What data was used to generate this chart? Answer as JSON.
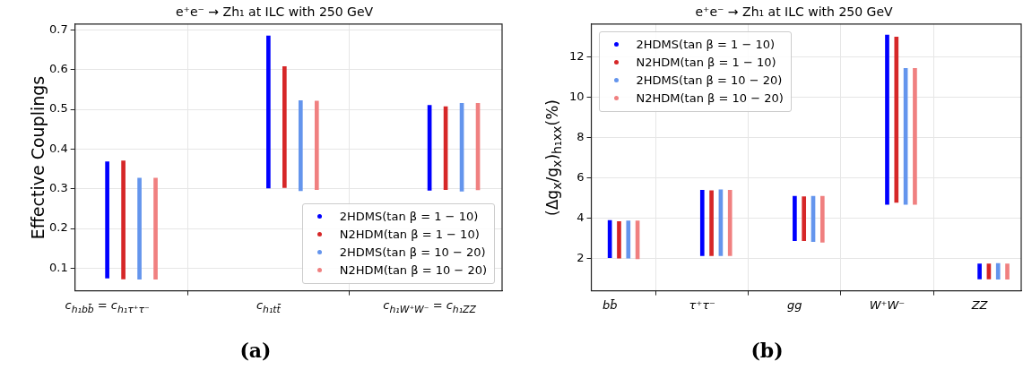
{
  "chart_data": [
    {
      "type": "bar",
      "title": "e⁺e⁻ → Zh₁ at ILC with 250 GeV",
      "ylabel": "Effective Couplings",
      "categories": [
        "c$_{h₁bb̄}$ = c$_{h₁τ⁺τ⁻}$",
        "c$_{h₁tt̄}$",
        "c$_{h₁W⁺W⁻}$ = c$_{h₁ZZ}$"
      ],
      "series": [
        {
          "name": "2HDMS(tan β = 1 − 10)",
          "color": "#0000ff",
          "base": [
            0.075,
            0.302,
            0.296
          ],
          "values": [
            0.293,
            0.383,
            0.214
          ]
        },
        {
          "name": "N2HDM(tan β = 1 − 10)",
          "color": "#d62728",
          "base": [
            0.073,
            0.303,
            0.298
          ],
          "values": [
            0.297,
            0.305,
            0.209
          ]
        },
        {
          "name": "2HDMS(tan β = 10 − 20)",
          "color": "#6495ed",
          "base": [
            0.072,
            0.295,
            0.294
          ],
          "values": [
            0.255,
            0.227,
            0.221
          ]
        },
        {
          "name": "N2HDM(tan β = 10 − 20)",
          "color": "#f08080",
          "base": [
            0.072,
            0.298,
            0.297
          ],
          "values": [
            0.255,
            0.223,
            0.218
          ]
        }
      ],
      "ylim": [
        0.043,
        0.715
      ],
      "yticks": [
        0.1,
        0.2,
        0.3,
        0.4,
        0.5,
        0.6,
        0.7
      ],
      "grid": true,
      "legend": "bottom right",
      "marker": "circle",
      "annotations": [
        "(a)"
      ]
    },
    {
      "type": "bar",
      "title": "e⁺e⁻ → Zh₁ at ILC with 250 GeV",
      "ylabel": "(Δg$_{x}$/g$_{x}$)$_{h₁xx}$(%)",
      "categories": [
        "bb̄",
        "τ⁺τ⁻",
        "gg",
        "W⁺W⁻",
        "ZZ"
      ],
      "series": [
        {
          "name": "2HDMS(tan β = 1 − 10)",
          "color": "#0000ff",
          "base": [
            2.05,
            2.15,
            2.9,
            4.7,
            1.0
          ],
          "values": [
            1.85,
            3.25,
            2.2,
            8.4,
            0.75
          ]
        },
        {
          "name": "N2HDM(tan β = 1 − 10)",
          "color": "#d62728",
          "base": [
            2.03,
            2.15,
            2.9,
            4.8,
            1.0
          ],
          "values": [
            1.82,
            3.23,
            2.18,
            8.2,
            0.75
          ]
        },
        {
          "name": "2HDMS(tan β = 10 − 20)",
          "color": "#6495ed",
          "base": [
            2.03,
            2.15,
            2.85,
            4.7,
            0.98
          ],
          "values": [
            1.85,
            3.27,
            2.25,
            6.75,
            0.79
          ]
        },
        {
          "name": "N2HDM(tan β = 10 − 20)",
          "color": "#f08080",
          "base": [
            2.0,
            2.15,
            2.82,
            4.7,
            0.98
          ],
          "values": [
            1.88,
            3.25,
            2.28,
            6.75,
            0.77
          ]
        }
      ],
      "ylim": [
        0.41,
        13.65
      ],
      "yticks": [
        2,
        4,
        6,
        8,
        10,
        12
      ],
      "grid": true,
      "legend": "top left",
      "marker": "circle",
      "annotations": [
        "(b)"
      ]
    }
  ]
}
